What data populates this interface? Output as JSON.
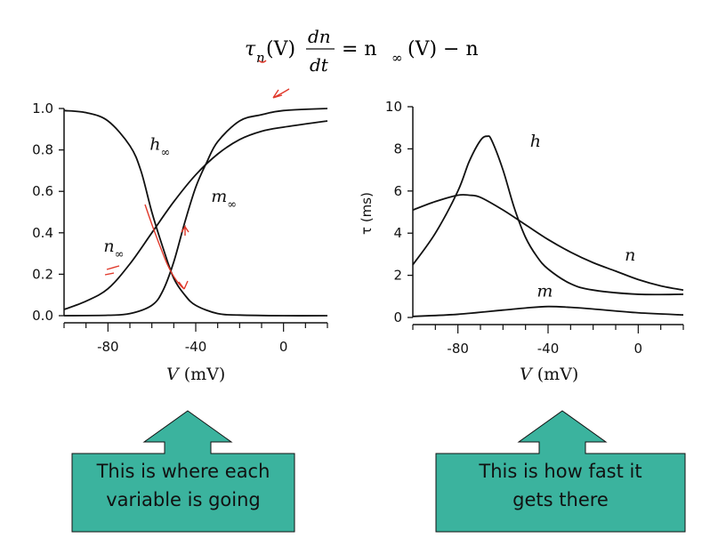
{
  "equation": {
    "lhs_tau": "τ",
    "lhs_sub": "n",
    "lhs_arg": "(V)",
    "frac_num": "dn",
    "frac_den": "dt",
    "rhs": "= n",
    "rhs_sub": "∞",
    "rhs_tail": "(V) − n"
  },
  "chart_data": [
    {
      "type": "line",
      "xlabel": "V (mV)",
      "ylabel": "",
      "xlim": [
        -100,
        20
      ],
      "ylim": [
        0,
        1
      ],
      "xticks": [
        -80,
        -40,
        0
      ],
      "yticks": [
        "0.0",
        "0.2",
        "0.4",
        "0.6",
        "0.8",
        "1.0"
      ],
      "series": [
        {
          "name": "h∞",
          "x": [
            -100,
            -90,
            -80,
            -70,
            -65,
            -60,
            -55,
            -50,
            -45,
            -40,
            -30,
            -20,
            0,
            20
          ],
          "y": [
            0.99,
            0.98,
            0.94,
            0.82,
            0.7,
            0.5,
            0.33,
            0.18,
            0.1,
            0.05,
            0.01,
            0.003,
            0.0,
            0.0
          ]
        },
        {
          "name": "n∞",
          "x": [
            -100,
            -90,
            -80,
            -70,
            -60,
            -50,
            -40,
            -30,
            -20,
            -10,
            0,
            20
          ],
          "y": [
            0.03,
            0.07,
            0.13,
            0.25,
            0.4,
            0.55,
            0.68,
            0.78,
            0.85,
            0.89,
            0.91,
            0.94
          ]
        },
        {
          "name": "m∞",
          "x": [
            -100,
            -80,
            -70,
            -60,
            -55,
            -50,
            -45,
            -40,
            -35,
            -30,
            -20,
            -10,
            0,
            20
          ],
          "y": [
            0.0,
            0.002,
            0.01,
            0.05,
            0.12,
            0.26,
            0.45,
            0.62,
            0.74,
            0.84,
            0.94,
            0.97,
            0.99,
            1.0
          ]
        }
      ],
      "labels": [
        {
          "text": "h",
          "sub": "∞",
          "x": -61,
          "y": 0.8
        },
        {
          "text": "m",
          "sub": "∞",
          "x": -33,
          "y": 0.55
        },
        {
          "text": "n",
          "sub": "∞",
          "x": -82,
          "y": 0.31
        }
      ]
    },
    {
      "type": "line",
      "xlabel": "V (mV)",
      "ylabel": "τ (ms)",
      "xlim": [
        -100,
        20
      ],
      "ylim": [
        0,
        10
      ],
      "xticks": [
        -80,
        -40,
        0
      ],
      "yticks": [
        "0",
        "2",
        "4",
        "6",
        "8",
        "10"
      ],
      "series": [
        {
          "name": "h",
          "x": [
            -100,
            -90,
            -80,
            -75,
            -70,
            -67,
            -65,
            -60,
            -55,
            -50,
            -45,
            -40,
            -30,
            -20,
            0,
            20
          ],
          "y": [
            2.5,
            4.0,
            6.0,
            7.4,
            8.4,
            8.6,
            8.4,
            7.0,
            5.2,
            3.8,
            2.9,
            2.3,
            1.6,
            1.3,
            1.1,
            1.1
          ]
        },
        {
          "name": "n",
          "x": [
            -100,
            -90,
            -80,
            -75,
            -70,
            -60,
            -50,
            -40,
            -30,
            -20,
            -10,
            0,
            10,
            20
          ],
          "y": [
            5.1,
            5.5,
            5.8,
            5.8,
            5.7,
            5.1,
            4.4,
            3.7,
            3.1,
            2.6,
            2.2,
            1.8,
            1.5,
            1.3
          ]
        },
        {
          "name": "m",
          "x": [
            -100,
            -80,
            -60,
            -50,
            -40,
            -30,
            -20,
            0,
            20
          ],
          "y": [
            0.05,
            0.15,
            0.35,
            0.45,
            0.52,
            0.48,
            0.4,
            0.22,
            0.12
          ]
        }
      ],
      "labels": [
        {
          "text": "h",
          "x": -48,
          "y": 8.1
        },
        {
          "text": "n",
          "x": -6,
          "y": 2.7
        },
        {
          "text": "m",
          "x": -45,
          "y": 1.0
        }
      ]
    }
  ],
  "callouts": {
    "left": {
      "line1": "This is where each",
      "line2": "variable is going",
      "color": "#3bb39e"
    },
    "right": {
      "line1": "This is how fast it",
      "line2": "gets there",
      "color": "#3bb39e"
    }
  },
  "annotation_color": "#e0392b"
}
